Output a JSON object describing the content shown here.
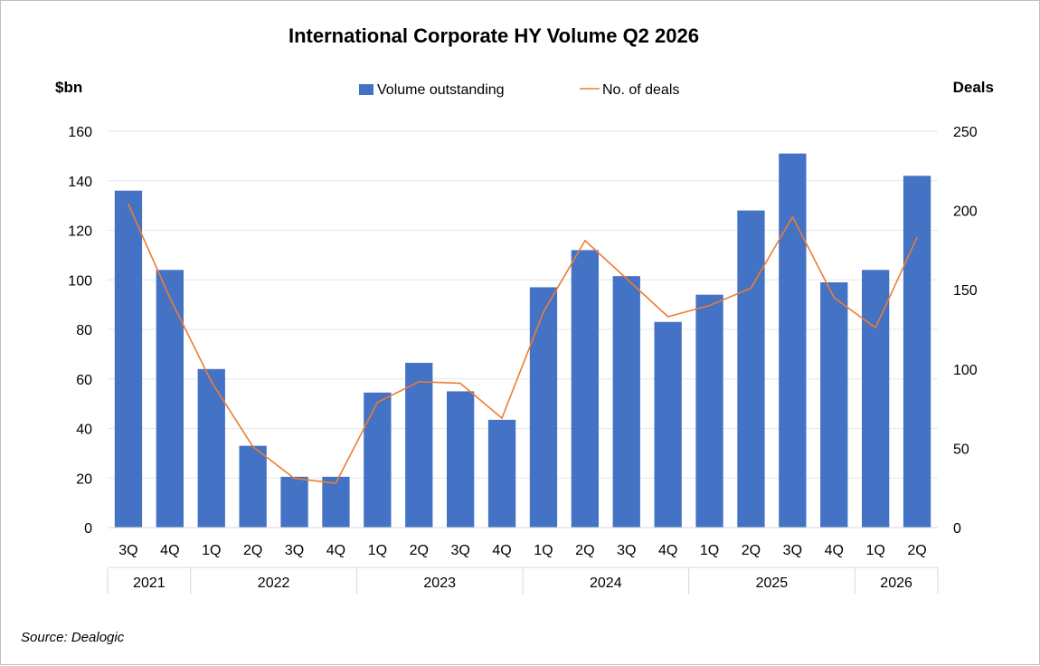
{
  "chart_data": {
    "type": "bar",
    "title": "International Corporate HY Volume Q2 2026",
    "y_left_label": "$bn",
    "y_right_label": "Deals",
    "ylim_left": [
      0,
      160
    ],
    "ylim_right": [
      0,
      250
    ],
    "yticks_left": [
      "0",
      "20",
      "40",
      "60",
      "80",
      "100",
      "120",
      "140",
      "160"
    ],
    "yticks_right": [
      "0",
      "50",
      "100",
      "150",
      "200",
      "250"
    ],
    "categories": [
      "3Q",
      "4Q",
      "1Q",
      "2Q",
      "3Q",
      "4Q",
      "1Q",
      "2Q",
      "3Q",
      "4Q",
      "1Q",
      "2Q",
      "3Q",
      "4Q",
      "1Q",
      "2Q",
      "3Q",
      "4Q",
      "1Q",
      "2Q"
    ],
    "year_groups": [
      {
        "label": "2021",
        "count": 2
      },
      {
        "label": "2022",
        "count": 4
      },
      {
        "label": "2023",
        "count": 4
      },
      {
        "label": "2024",
        "count": 4
      },
      {
        "label": "2025",
        "count": 4
      },
      {
        "label": "2026",
        "count": 2
      }
    ],
    "series": [
      {
        "name": "Volume outstanding",
        "type": "bar",
        "axis": "left",
        "color": "#4472c4",
        "values": [
          136,
          104,
          64,
          33,
          20.5,
          20.5,
          54.5,
          66.5,
          55,
          43.5,
          97,
          112,
          101.5,
          83,
          94,
          128,
          151,
          99,
          104,
          142
        ]
      },
      {
        "name": "No. of deals",
        "type": "line",
        "axis": "right",
        "color": "#ed7d31",
        "values": [
          204,
          145,
          92,
          51,
          31,
          28,
          79,
          92,
          91,
          69,
          136,
          181,
          157,
          133,
          140,
          151,
          196,
          145,
          126,
          183
        ]
      }
    ],
    "legend_position": "top",
    "grid": true
  },
  "source_note": "Source: Dealogic"
}
